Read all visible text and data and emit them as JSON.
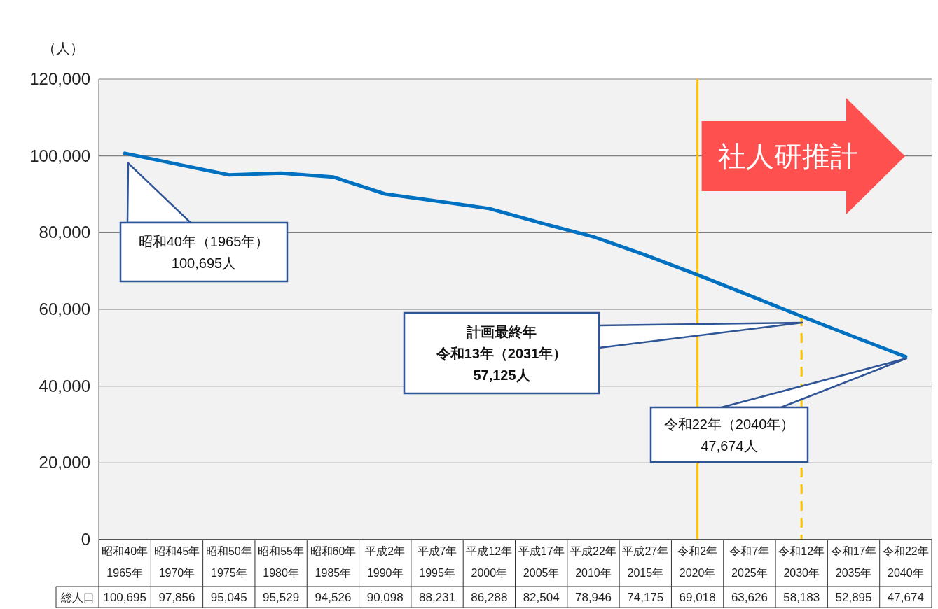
{
  "chart_data": {
    "type": "line",
    "ylabel": "（人）",
    "categories": [
      "昭和40年\n1965年",
      "昭和45年\n1970年",
      "昭和50年\n1975年",
      "昭和55年\n1980年",
      "昭和60年\n1985年",
      "平成2年\n1990年",
      "平成7年\n1995年",
      "平成12年\n2000年",
      "平成17年\n2005年",
      "平成22年\n2010年",
      "平成27年\n2015年",
      "令和2年\n2020年",
      "令和7年\n2025年",
      "令和12年\n2030年",
      "令和17年\n2035年",
      "令和22年\n2040年"
    ],
    "series": [
      {
        "name": "総人口",
        "color": "#0070c0",
        "values": [
          100695,
          97856,
          95045,
          95529,
          94526,
          90098,
          88231,
          86288,
          82504,
          78946,
          74175,
          69018,
          63626,
          58183,
          52895,
          47674
        ],
        "value_labels": [
          "100,695",
          "97,856",
          "95,045",
          "95,529",
          "94,526",
          "90,098",
          "88,231",
          "86,288",
          "82,504",
          "78,946",
          "74,175",
          "69,018",
          "63,626",
          "58,183",
          "52,895",
          "47,674"
        ]
      }
    ],
    "ylim": [
      0,
      120000
    ],
    "yticks": [
      0,
      {
        "value": 20000,
        "label": "20,000"
      },
      {
        "value": 40000,
        "label": "40,000"
      },
      {
        "value": 60000,
        "label": "60,000"
      },
      {
        "value": 80000,
        "label": "80,000"
      },
      {
        "value": 100000,
        "label": "100,000"
      },
      {
        "value": 120000,
        "label": "120,000"
      }
    ],
    "grid": "y",
    "ref_lines": [
      {
        "axis": "x",
        "value": "令和2年\n2020年",
        "color": "#ffc000",
        "line_style": "solid"
      },
      {
        "axis": "x",
        "value": "令和12年\n2030年",
        "color": "#ffc000",
        "line_style": "dashed"
      }
    ],
    "annotations": [
      "昭和40年（1965年）",
      "100,695人",
      "計画最終年",
      "令和13年（2031年）",
      "57,125人",
      "令和22年（2040年）",
      "47,674人",
      "社人研推計"
    ]
  }
}
